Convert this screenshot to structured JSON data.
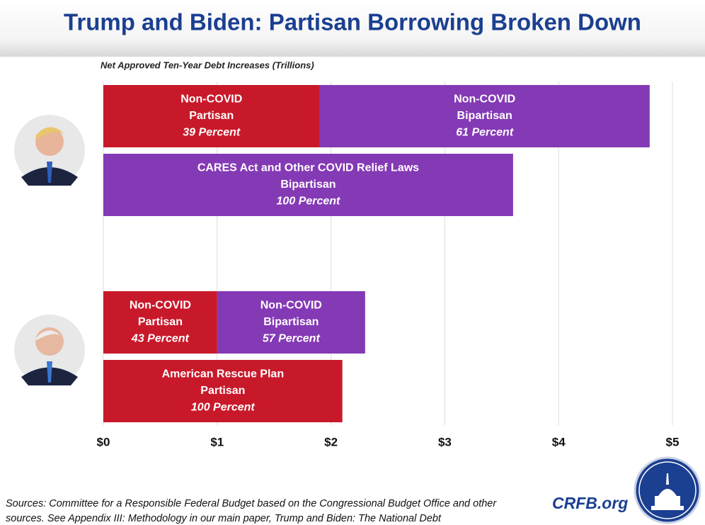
{
  "chart_data": {
    "type": "stacked-barh",
    "title": "Trump and Biden: Partisan Borrowing Broken Down",
    "subtitle": "Net Approved Ten-Year Debt Increases (Trillions)",
    "xlim": [
      0,
      5
    ],
    "xticks": [
      {
        "value": 0,
        "label": "$0"
      },
      {
        "value": 1,
        "label": "$1"
      },
      {
        "value": 2,
        "label": "$2"
      },
      {
        "value": 3,
        "label": "$3"
      },
      {
        "value": 4,
        "label": "$4"
      },
      {
        "value": 5,
        "label": "$5"
      }
    ],
    "grid": true,
    "bars": [
      {
        "segments": [
          {
            "lines": [
              "Non-COVID",
              "Partisan",
              "39 Percent"
            ],
            "value": 1.9,
            "color": "#c8192a"
          },
          {
            "lines": [
              "Non-COVID",
              "Bipartisan",
              "61 Percent"
            ],
            "value": 2.9,
            "color": "#8439b5"
          }
        ]
      },
      {
        "segments": [
          {
            "lines": [
              "CARES Act and Other COVID Relief Laws",
              "Bipartisan",
              "100 Percent"
            ],
            "value": 3.6,
            "color": "#8439b5"
          }
        ]
      },
      {
        "segments": [
          {
            "lines": [
              "Non-COVID",
              "Partisan",
              "43 Percent"
            ],
            "value": 1.0,
            "color": "#c8192a"
          },
          {
            "lines": [
              "Non-COVID",
              "Bipartisan",
              "57 Percent"
            ],
            "value": 1.3,
            "color": "#8439b5"
          }
        ]
      },
      {
        "segments": [
          {
            "lines": [
              "American Rescue Plan",
              "Partisan",
              "100 Percent"
            ],
            "value": 2.1,
            "color": "#c8192a"
          }
        ]
      }
    ],
    "source_lines": [
      "Sources: Committee for a Responsible Federal Budget based on the Congressional Budget Office and other",
      "sources. See Appendix III: Methodology in our main paper, Trump and Biden: The National Debt"
    ],
    "brand": "CRFB.org"
  }
}
